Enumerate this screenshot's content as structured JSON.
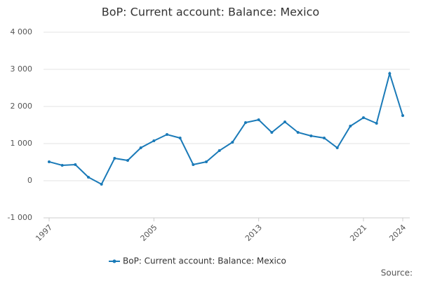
{
  "chart_data": {
    "type": "line",
    "title": "BoP: Current account: Balance: Mexico",
    "x": [
      1997,
      1998,
      1999,
      2000,
      2001,
      2002,
      2003,
      2004,
      2005,
      2006,
      2007,
      2008,
      2009,
      2010,
      2011,
      2012,
      2013,
      2014,
      2015,
      2016,
      2017,
      2018,
      2019,
      2020,
      2021,
      2022,
      2023,
      2024
    ],
    "series": [
      {
        "name": "BoP: Current account: Balance: Mexico",
        "color": "#1a7ab8",
        "values": [
          510,
          415,
          434,
          94,
          -94,
          604,
          547,
          887,
          1075,
          1245,
          1151,
          434,
          509,
          811,
          1038,
          1566,
          1642,
          1302,
          1585,
          1302,
          1208,
          1151,
          887,
          1472,
          1698,
          1547,
          2887,
          1755
        ]
      }
    ],
    "xlim": [
      1997,
      2024
    ],
    "xticks": [
      1997,
      2005,
      2013,
      2021,
      2024
    ],
    "ylim": [
      -1000,
      4000
    ],
    "yticks": [
      {
        "value": -1000,
        "label": "-1 000"
      },
      0,
      {
        "value": 1000,
        "label": "1 000"
      },
      {
        "value": 2000,
        "label": "2 000"
      },
      {
        "value": 3000,
        "label": "3 000"
      },
      {
        "value": 4000,
        "label": "4 000"
      }
    ],
    "grid": true,
    "legend": "bottom",
    "source": "Source:"
  }
}
